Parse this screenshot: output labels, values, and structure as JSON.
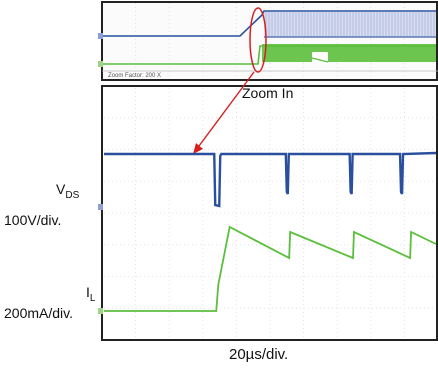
{
  "chart_data": {
    "type": "line",
    "title": "",
    "zoom_annotation": "Zoom In",
    "zoom_factor_text": "Zoom Factor: 200 X",
    "time_scale": "20µs/div.",
    "grid": true,
    "channels": [
      {
        "symbol": "V",
        "subscript": "DS",
        "scale": "100V/div.",
        "color": "#2a4f9e",
        "description": "drain-source voltage trace (high plateau with periodic notches)"
      },
      {
        "symbol": "I",
        "subscript": "L",
        "scale": "200mA/div.",
        "color": "#5bbf3c",
        "description": "inductor current trace (rises at turn-on, sawtooth afterwards)"
      }
    ],
    "detail_view": {
      "x_range_div": [
        0,
        10
      ],
      "vds_events_div": [
        3.4,
        5.5,
        7.4,
        8.9
      ],
      "il_sawtooth_peaks_div": [
        3.8,
        5.6,
        7.5,
        9.2
      ]
    }
  }
}
